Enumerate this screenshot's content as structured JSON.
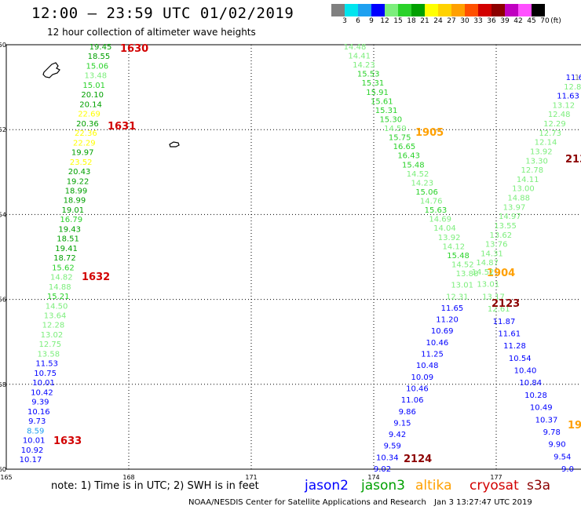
{
  "title": "12:00 – 23:59 UTC 01/02/2019",
  "subtitle": "12 hour collection of altimeter wave heights",
  "legend": {
    "unit_label": "(ft)",
    "bins": [
      {
        "label": "3",
        "color": "#808080"
      },
      {
        "label": "6",
        "color": "#00e5ee"
      },
      {
        "label": "9",
        "color": "#1ea0f0"
      },
      {
        "label": "12",
        "color": "#0000ff"
      },
      {
        "label": "15",
        "color": "#7cee7c"
      },
      {
        "label": "18",
        "color": "#2ad22a"
      },
      {
        "label": "21",
        "color": "#00a000"
      },
      {
        "label": "24",
        "color": "#ffff00"
      },
      {
        "label": "27",
        "color": "#ffd200"
      },
      {
        "label": "30",
        "color": "#ffa000"
      },
      {
        "label": "33",
        "color": "#ff5000"
      },
      {
        "label": "36",
        "color": "#d20000"
      },
      {
        "label": "39",
        "color": "#8c0000"
      },
      {
        "label": "42",
        "color": "#c000c0"
      },
      {
        "label": "45",
        "color": "#ff50ff"
      },
      {
        "label": "70",
        "color": "#000000"
      }
    ]
  },
  "axes": {
    "lat_labels": [
      "-50",
      "-52",
      "-54",
      "-56",
      "-58",
      "-60"
    ],
    "lon_labels": [
      "165",
      "168",
      "171",
      "174",
      "177"
    ]
  },
  "tracks": [
    {
      "satellite": "cryosat",
      "pass_labels": [
        {
          "text": "1630",
          "color": "#d20000"
        },
        {
          "text": "1631",
          "color": "#d20000"
        },
        {
          "text": "1632",
          "color": "#d20000"
        },
        {
          "text": "1633",
          "color": "#d20000"
        }
      ],
      "values": [
        "19.45",
        "18.55",
        "15.06",
        "13.48",
        "15.01",
        "20.10",
        "20.14",
        "22.69",
        "20.36",
        "22.36",
        "22.29",
        "19.97",
        "23.52",
        "20.43",
        "19.22",
        "18.99",
        "18.99",
        "19.01",
        "16.79",
        "19.43",
        "18.51",
        "19.41",
        "18.72",
        "15.62",
        "14.82",
        "14.88",
        "15.21",
        "14.50",
        "13.64",
        "12.28",
        "13.02",
        "12.75",
        "13.58",
        "11.53",
        "10.75",
        "10.01",
        "10.42",
        "9.39",
        "10.16",
        "9.73",
        "8.59",
        "10.01",
        "10.92",
        "10.17"
      ]
    },
    {
      "satellite": "altika",
      "pass_labels": [
        {
          "text": "1905",
          "color": "#ffa000"
        },
        {
          "text": "1904",
          "color": "#ffa000"
        }
      ],
      "values": [
        "14.48",
        "14.41",
        "14.23",
        "15.53",
        "15.31",
        "15.91",
        "15.61",
        "15.31",
        "15.30",
        "14.59",
        "15.75",
        "16.65",
        "16.43",
        "15.48",
        "14.52",
        "14.23",
        "15.06",
        "14.76",
        "15.63",
        "14.69",
        "14.04",
        "13.92",
        "14.12",
        "15.48",
        "14.52",
        "13.88",
        "13.01",
        "12.31",
        "11.65",
        "11.20",
        "10.69",
        "10.46",
        "11.25",
        "10.48",
        "10.09",
        "10.46",
        "11.06",
        "9.86",
        "9.15",
        "9.42",
        "9.59",
        "10.34",
        "9.02"
      ]
    },
    {
      "satellite": "s3a",
      "pass_labels": [
        {
          "text": "2123",
          "color": "#8c0000"
        },
        {
          "text": "2124",
          "color": "#8c0000"
        },
        {
          "text": "213",
          "color": "#8c0000"
        }
      ],
      "values": [
        "11.62",
        "12.8",
        "11.63",
        "13.12",
        "12.48",
        "12.29",
        "12.73",
        "12.14",
        "13.92",
        "13.30",
        "12.78",
        "14.11",
        "13.00",
        "14.88",
        "13.97",
        "14.97",
        "13.55",
        "13.62",
        "13.76",
        "14.31",
        "14.87",
        "14.52",
        "13.01",
        "13.17",
        "12.61",
        "11.87",
        "11.61",
        "11.28",
        "10.54",
        "10.40",
        "10.84",
        "10.28",
        "10.49",
        "10.37",
        "9.78",
        "9.90",
        "9.54",
        "9.0"
      ]
    },
    {
      "satellite": "jason3",
      "pass_labels": [
        {
          "text": "19",
          "color": "#ffa000"
        }
      ],
      "values": [
        "1"
      ]
    }
  ],
  "note": "note: 1) Time is in UTC; 2) SWH is in feet",
  "satellites": [
    {
      "name": "jason2",
      "color": "#0000ff"
    },
    {
      "name": "jason3",
      "color": "#00a000"
    },
    {
      "name": "altika",
      "color": "#ffa000"
    },
    {
      "name": "cryosat",
      "color": "#d20000"
    },
    {
      "name": "s3a",
      "color": "#8c0000"
    }
  ],
  "credit": "NOAA/NESDIS Center for Satellite Applications and Research",
  "timestamp": "Jan  3 13:27:47 UTC 2019"
}
